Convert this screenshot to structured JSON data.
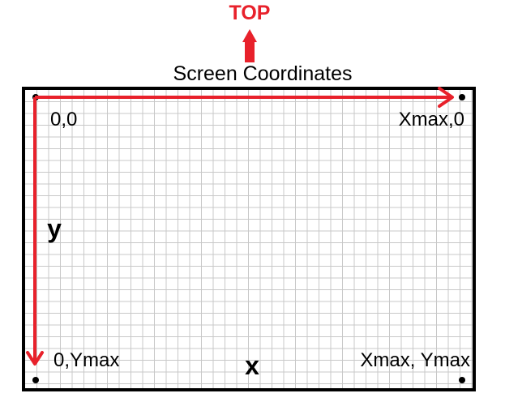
{
  "diagram": {
    "orientation_label": "TOP",
    "title": "Screen Coordinates",
    "corners": {
      "top_left": "0,0",
      "top_right": "Xmax,0",
      "bottom_left": "0,Ymax",
      "bottom_right": "Xmax, Ymax"
    },
    "axis_x_label": "x",
    "axis_y_label": "y"
  },
  "colors": {
    "arrow": "#e8212b",
    "frame": "#000000",
    "grid": "#c8c8c8",
    "background": "#ffffff"
  },
  "icons": {
    "orientation_arrow": "arrow-up-icon",
    "corner_marker": "dot-icon"
  }
}
